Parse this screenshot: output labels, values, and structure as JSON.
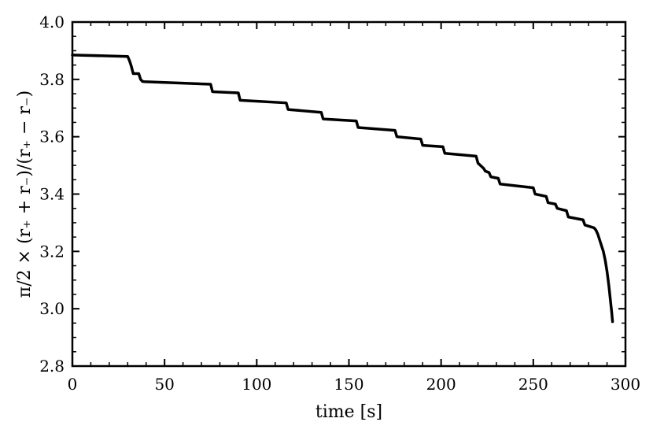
{
  "chart_data": {
    "type": "line",
    "title": "",
    "xlabel": "time [s]",
    "ylabel": "π/2 × (r₊ + r₋)/(r₊ − r₋)",
    "xlim": [
      0,
      300
    ],
    "ylim": [
      2.8,
      4.0
    ],
    "x_ticks": [
      "0",
      "50",
      "100",
      "150",
      "200",
      "250",
      "300"
    ],
    "y_ticks": [
      "2.8",
      "3.0",
      "3.2",
      "3.4",
      "3.6",
      "3.8",
      "4.0"
    ],
    "grid": false,
    "line_color": "#000000",
    "series": [
      {
        "x": [
          0,
          30,
          31,
          32,
          33,
          36,
          37,
          38,
          39,
          75,
          76,
          90,
          91,
          116,
          117,
          135,
          136,
          154,
          155,
          175,
          176,
          189,
          190,
          201,
          202,
          219,
          220,
          223,
          224,
          226,
          227,
          231,
          232,
          250,
          251,
          257,
          258,
          262,
          263,
          268,
          269,
          277,
          278,
          283,
          284,
          285,
          286,
          287,
          288,
          289,
          290,
          291,
          292,
          292.5,
          293
        ],
        "y": [
          3.885,
          3.88,
          3.865,
          3.845,
          3.82,
          3.82,
          3.8,
          3.793,
          3.792,
          3.783,
          3.757,
          3.753,
          3.727,
          3.718,
          3.695,
          3.685,
          3.662,
          3.655,
          3.632,
          3.622,
          3.6,
          3.592,
          3.57,
          3.565,
          3.542,
          3.532,
          3.508,
          3.49,
          3.48,
          3.475,
          3.46,
          3.455,
          3.435,
          3.422,
          3.4,
          3.392,
          3.37,
          3.365,
          3.35,
          3.342,
          3.32,
          3.31,
          3.292,
          3.282,
          3.274,
          3.26,
          3.24,
          3.22,
          3.2,
          3.17,
          3.13,
          3.08,
          3.02,
          2.99,
          2.955
        ]
      }
    ]
  }
}
